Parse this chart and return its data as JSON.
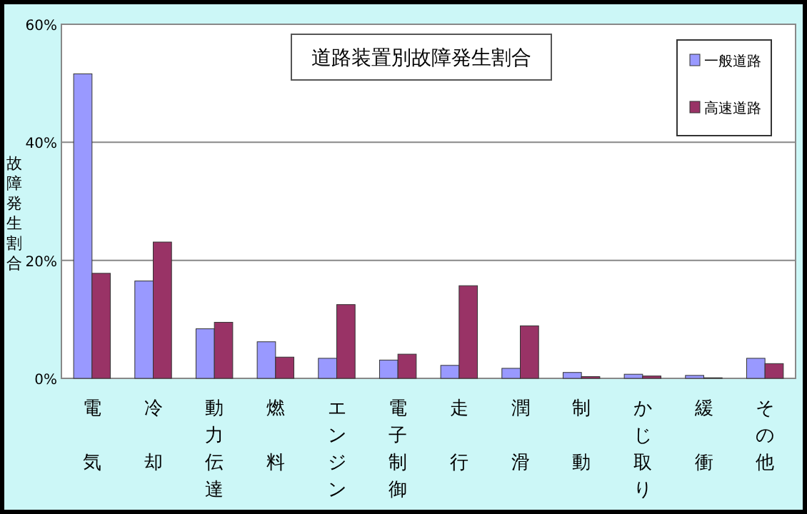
{
  "chart_data": {
    "type": "bar",
    "title": "道路装置別故障発生割合",
    "ylabel": "故障発生割合",
    "categories": [
      "電気",
      "冷却",
      "動力伝達",
      "燃料",
      "エンジン",
      "電子制御",
      "走行",
      "潤滑",
      "制動",
      "かじ取り",
      "緩衝",
      "その他"
    ],
    "series": [
      {
        "name": "一般道路",
        "color": "#9999ff",
        "values": [
          51.6,
          16.5,
          8.4,
          6.2,
          3.4,
          3.1,
          2.2,
          1.7,
          1.0,
          0.7,
          0.5,
          3.4
        ]
      },
      {
        "name": "高速道路",
        "color": "#993366",
        "values": [
          17.8,
          23.1,
          9.5,
          3.6,
          12.5,
          4.1,
          15.7,
          8.9,
          0.3,
          0.4,
          0.1,
          2.5
        ]
      }
    ],
    "ylim": [
      0,
      60
    ],
    "yticks": [
      {
        "value": 0,
        "label": "0%"
      },
      {
        "value": 20,
        "label": "20%"
      },
      {
        "value": 40,
        "label": "40%"
      },
      {
        "value": 60,
        "label": "60%"
      }
    ],
    "grid": "y",
    "legend": "top right"
  }
}
